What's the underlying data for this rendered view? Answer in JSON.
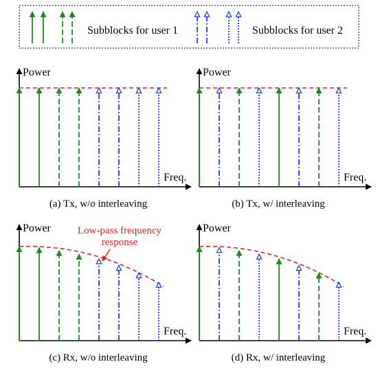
{
  "legend": {
    "user1_label": "Subblocks for user 1",
    "user2_label": "Subblocks for user 2"
  },
  "axes": {
    "ylabel": "Power",
    "xlabel": "Freq."
  },
  "annotation": {
    "line1": "Low-pass frequency",
    "line2": "response"
  },
  "panels": [
    {
      "caption": "(a) Tx, w/o interleaving",
      "arrows": [
        {
          "user": 1,
          "style": "solid",
          "level": 1.0
        },
        {
          "user": 1,
          "style": "solid",
          "level": 1.0
        },
        {
          "user": 1,
          "style": "dashed",
          "level": 1.0
        },
        {
          "user": 1,
          "style": "dashed",
          "level": 1.0
        },
        {
          "user": 2,
          "style": "dashdot",
          "level": 1.0
        },
        {
          "user": 2,
          "style": "dashdot",
          "level": 1.0
        },
        {
          "user": 2,
          "style": "dotted",
          "level": 1.0
        },
        {
          "user": 2,
          "style": "dotted",
          "level": 1.0
        }
      ]
    },
    {
      "caption": "(b) Tx, w/ interleaving",
      "arrows": [
        {
          "user": 1,
          "style": "solid",
          "level": 1.0
        },
        {
          "user": 2,
          "style": "dashdot",
          "level": 1.0
        },
        {
          "user": 1,
          "style": "dashed",
          "level": 1.0
        },
        {
          "user": 2,
          "style": "dotted",
          "level": 1.0
        },
        {
          "user": 1,
          "style": "solid",
          "level": 1.0
        },
        {
          "user": 2,
          "style": "dashdot",
          "level": 1.0
        },
        {
          "user": 1,
          "style": "dashed",
          "level": 1.0
        },
        {
          "user": 2,
          "style": "dotted",
          "level": 1.0
        }
      ]
    },
    {
      "caption": "(c) Rx, w/o interleaving",
      "arrows": [
        {
          "user": 1,
          "style": "solid",
          "level": 1.0
        },
        {
          "user": 1,
          "style": "solid",
          "level": 0.99
        },
        {
          "user": 1,
          "style": "dashed",
          "level": 0.96
        },
        {
          "user": 1,
          "style": "dashed",
          "level": 0.92
        },
        {
          "user": 2,
          "style": "dashdot",
          "level": 0.87
        },
        {
          "user": 2,
          "style": "dashdot",
          "level": 0.8
        },
        {
          "user": 2,
          "style": "dotted",
          "level": 0.72
        },
        {
          "user": 2,
          "style": "dotted",
          "level": 0.62
        }
      ]
    },
    {
      "caption": "(d) Rx, w/ interleaving",
      "arrows": [
        {
          "user": 1,
          "style": "solid",
          "level": 1.0
        },
        {
          "user": 2,
          "style": "dashdot",
          "level": 0.99
        },
        {
          "user": 1,
          "style": "dashed",
          "level": 0.96
        },
        {
          "user": 2,
          "style": "dotted",
          "level": 0.92
        },
        {
          "user": 1,
          "style": "solid",
          "level": 0.87
        },
        {
          "user": 2,
          "style": "dashdot",
          "level": 0.8
        },
        {
          "user": 1,
          "style": "dashed",
          "level": 0.72
        },
        {
          "user": 2,
          "style": "dotted",
          "level": 0.62
        }
      ]
    }
  ],
  "colors": {
    "user1": "#1e8a1e",
    "user2": "#1f3fe0",
    "envelope": "#e02020",
    "annotation": "#e02020"
  }
}
